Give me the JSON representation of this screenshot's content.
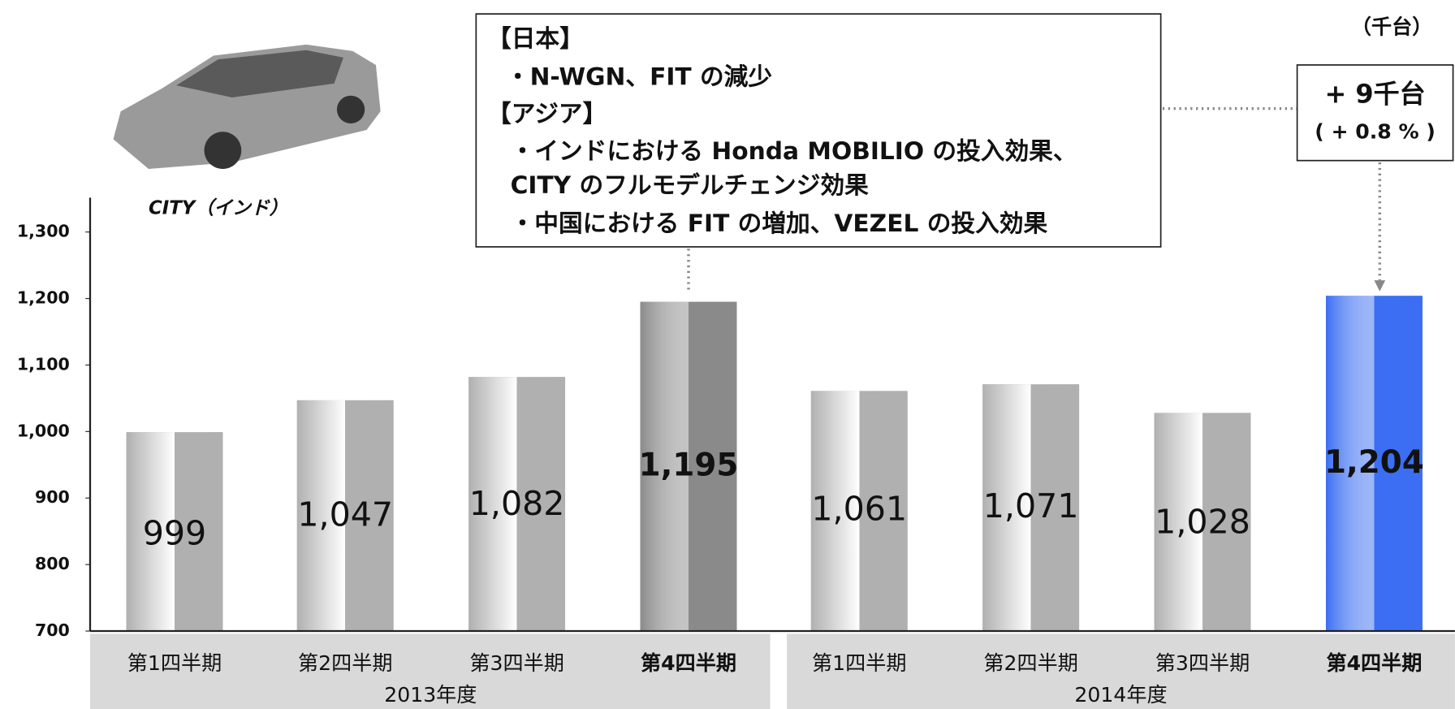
{
  "chart_data": {
    "type": "bar",
    "unit_label": "（千台）",
    "car_caption": "CITY（インド）",
    "categories": [
      "第1四半期",
      "第2四半期",
      "第3四半期",
      "第4四半期",
      "第1四半期",
      "第2四半期",
      "第3四半期",
      "第4四半期"
    ],
    "groups": [
      "2013年度",
      "2014年度"
    ],
    "values": [
      999,
      1047,
      1082,
      1195,
      1061,
      1071,
      1028,
      1204
    ],
    "value_labels": [
      "999",
      "1,047",
      "1,082",
      "1,195",
      "1,061",
      "1,071",
      "1,028",
      "1,204"
    ],
    "colors": [
      "#b0b0b0",
      "#b0b0b0",
      "#b0b0b0",
      "#8a8a8a",
      "#b0b0b0",
      "#b0b0b0",
      "#b0b0b0",
      "#3b6ef2"
    ],
    "ylim": [
      700,
      1300
    ],
    "yticks": [
      700,
      800,
      900,
      {
        "value": 1000,
        "label": "1,000"
      },
      {
        "value": 1100,
        "label": "1,100"
      },
      {
        "value": 1200,
        "label": "1,200"
      },
      {
        "value": 1300,
        "label": "1,300"
      }
    ],
    "annotation": [
      "【日本】",
      "・N-WGN、FIT の減少",
      "【アジア】",
      "・インドにおける Honda MOBILIO の投入効果、",
      "CITY のフルモデルチェンジ効果",
      "・中国における FIT の増加、VEZEL の投入効果"
    ],
    "change_callout": [
      "+ 9千台",
      "( + 0.8 % )"
    ]
  }
}
